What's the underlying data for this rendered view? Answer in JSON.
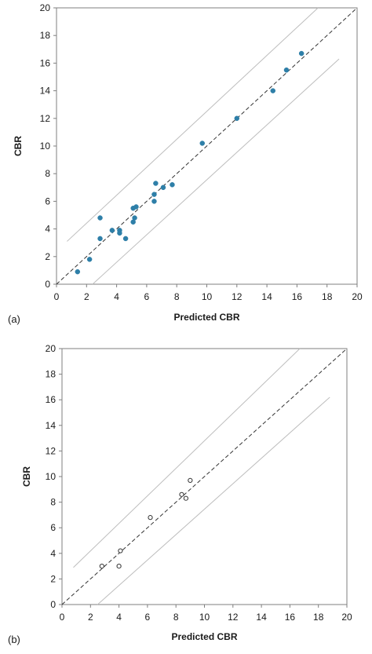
{
  "chart_data": [
    {
      "type": "scatter",
      "panel_label": "(a)",
      "xlabel": "Predicted CBR",
      "ylabel": "CBR",
      "xlim": [
        0,
        20
      ],
      "ylim": [
        0,
        20
      ],
      "x_ticks": [
        "0",
        "2",
        "4",
        "6",
        "8",
        "10",
        "12",
        "14",
        "16",
        "18",
        "20"
      ],
      "y_ticks": [
        "0",
        "2",
        "4",
        "6",
        "8",
        "10",
        "12",
        "14",
        "16",
        "18",
        "20"
      ],
      "grid": false,
      "frame": true,
      "marker": "filled",
      "marker_color": "#2e7fa8",
      "points": [
        {
          "x": 1.4,
          "y": 0.9
        },
        {
          "x": 2.2,
          "y": 1.8
        },
        {
          "x": 2.9,
          "y": 3.3
        },
        {
          "x": 2.9,
          "y": 4.8
        },
        {
          "x": 3.7,
          "y": 3.9
        },
        {
          "x": 4.2,
          "y": 3.7
        },
        {
          "x": 4.2,
          "y": 3.9
        },
        {
          "x": 4.6,
          "y": 3.3
        },
        {
          "x": 5.1,
          "y": 4.5
        },
        {
          "x": 5.1,
          "y": 5.5
        },
        {
          "x": 5.2,
          "y": 4.8
        },
        {
          "x": 5.3,
          "y": 5.6
        },
        {
          "x": 6.5,
          "y": 6.0
        },
        {
          "x": 6.5,
          "y": 6.5
        },
        {
          "x": 6.6,
          "y": 7.3
        },
        {
          "x": 7.1,
          "y": 7.0
        },
        {
          "x": 7.7,
          "y": 7.2
        },
        {
          "x": 9.7,
          "y": 10.2
        },
        {
          "x": 12.0,
          "y": 12.0
        },
        {
          "x": 14.4,
          "y": 14.0
        },
        {
          "x": 15.3,
          "y": 15.5
        },
        {
          "x": 16.3,
          "y": 16.7
        }
      ],
      "reference_lines": [
        {
          "style": "dashed",
          "color": "#333333",
          "points": [
            [
              0,
              0
            ],
            [
              19.9,
              19.9
            ]
          ]
        },
        {
          "style": "solid",
          "color": "#bdbdbd",
          "points": [
            [
              0.7,
              3.1
            ],
            [
              17.4,
              20.0
            ]
          ]
        },
        {
          "style": "solid",
          "color": "#bdbdbd",
          "points": [
            [
              2.4,
              0.0
            ],
            [
              18.8,
              16.3
            ]
          ]
        }
      ]
    },
    {
      "type": "scatter",
      "panel_label": "(b)",
      "xlabel": "Predicted CBR",
      "ylabel": "CBR",
      "xlim": [
        0,
        20
      ],
      "ylim": [
        0,
        20
      ],
      "x_ticks": [
        "0",
        "2",
        "4",
        "6",
        "8",
        "10",
        "12",
        "14",
        "16",
        "18",
        "20"
      ],
      "y_ticks": [
        "0",
        "2",
        "4",
        "6",
        "8",
        "10",
        "12",
        "14",
        "16",
        "18",
        "20"
      ],
      "grid": false,
      "frame": true,
      "marker": "hollow",
      "marker_color": "#333333",
      "points": [
        {
          "x": 2.8,
          "y": 3.0
        },
        {
          "x": 4.0,
          "y": 3.0
        },
        {
          "x": 4.1,
          "y": 4.2
        },
        {
          "x": 6.2,
          "y": 6.8
        },
        {
          "x": 8.4,
          "y": 8.6
        },
        {
          "x": 8.7,
          "y": 8.3
        },
        {
          "x": 9.0,
          "y": 9.7
        }
      ],
      "reference_lines": [
        {
          "style": "dashed",
          "color": "#333333",
          "points": [
            [
              0,
              0
            ],
            [
              19.9,
              19.9
            ]
          ]
        },
        {
          "style": "solid",
          "color": "#bdbdbd",
          "points": [
            [
              0.8,
              2.9
            ],
            [
              16.7,
              20.0
            ]
          ]
        },
        {
          "style": "solid",
          "color": "#bdbdbd",
          "points": [
            [
              2.5,
              0.0
            ],
            [
              18.8,
              16.2
            ]
          ]
        }
      ]
    }
  ]
}
